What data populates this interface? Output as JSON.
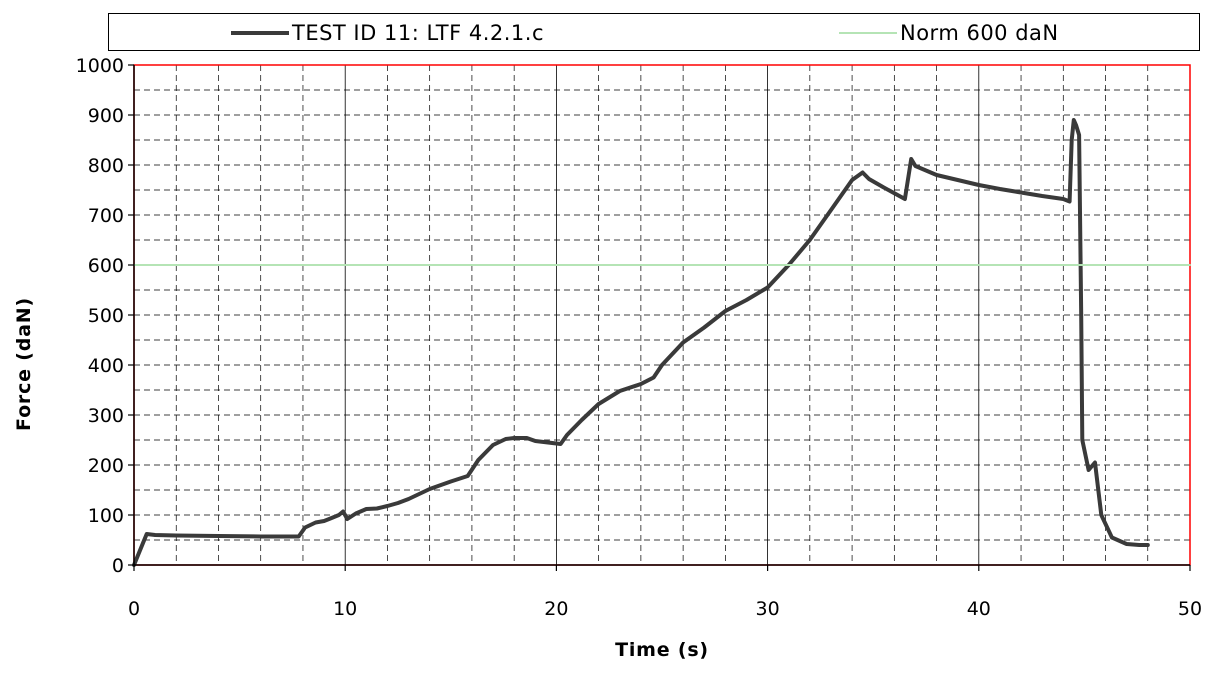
{
  "chart_data": {
    "type": "line",
    "xlabel": "Time (s)",
    "ylabel": "Force (daN)",
    "xlim": [
      0,
      50
    ],
    "ylim": [
      0,
      1000
    ],
    "xticks": [
      "0",
      "10",
      "20",
      "30",
      "40",
      "50"
    ],
    "yticks": [
      "0",
      "100",
      "200",
      "300",
      "400",
      "500",
      "600",
      "700",
      "800",
      "900",
      "1000"
    ],
    "grid": "major solid, minor dashed",
    "legend_position": "top",
    "series": [
      {
        "name": "TEST ID 11: LTF 4.2.1.c",
        "color": "#3a3a3a",
        "x": [
          0,
          0.6,
          1,
          2,
          4,
          6,
          7.8,
          8.1,
          8.6,
          9,
          9.3,
          9.7,
          9.9,
          10.1,
          10.5,
          11,
          11.5,
          12,
          12.5,
          13,
          14,
          15,
          15.8,
          16.3,
          17,
          17.6,
          18,
          18.6,
          19,
          20.2,
          20.5,
          21.2,
          22,
          23,
          24,
          24.6,
          25,
          26,
          27,
          28,
          29,
          30,
          31,
          32,
          33,
          34,
          34.5,
          34.8,
          35.5,
          36.5,
          36.8,
          37,
          38,
          39,
          40,
          41,
          42,
          43,
          44,
          44.3,
          44.4,
          44.5,
          44.6,
          44.75,
          44.85,
          44.9,
          45.2,
          45.5,
          45.8,
          46.3,
          47,
          47.6,
          48
        ],
        "y": [
          0,
          62,
          60,
          59,
          58,
          57,
          57,
          75,
          85,
          88,
          93,
          100,
          107,
          92,
          103,
          112,
          113,
          118,
          124,
          132,
          152,
          167,
          178,
          210,
          240,
          252,
          254,
          254,
          248,
          242,
          260,
          290,
          322,
          348,
          362,
          375,
          400,
          445,
          475,
          508,
          530,
          555,
          600,
          650,
          710,
          770,
          785,
          772,
          755,
          732,
          812,
          798,
          780,
          770,
          760,
          752,
          745,
          738,
          732,
          727,
          850,
          890,
          880,
          860,
          500,
          250,
          190,
          205,
          100,
          55,
          42,
          40,
          40
        ]
      },
      {
        "name": "Norm 600 daN",
        "color": "#b5e4b5",
        "x": [
          0,
          50
        ],
        "y": [
          600,
          600
        ]
      }
    ]
  }
}
